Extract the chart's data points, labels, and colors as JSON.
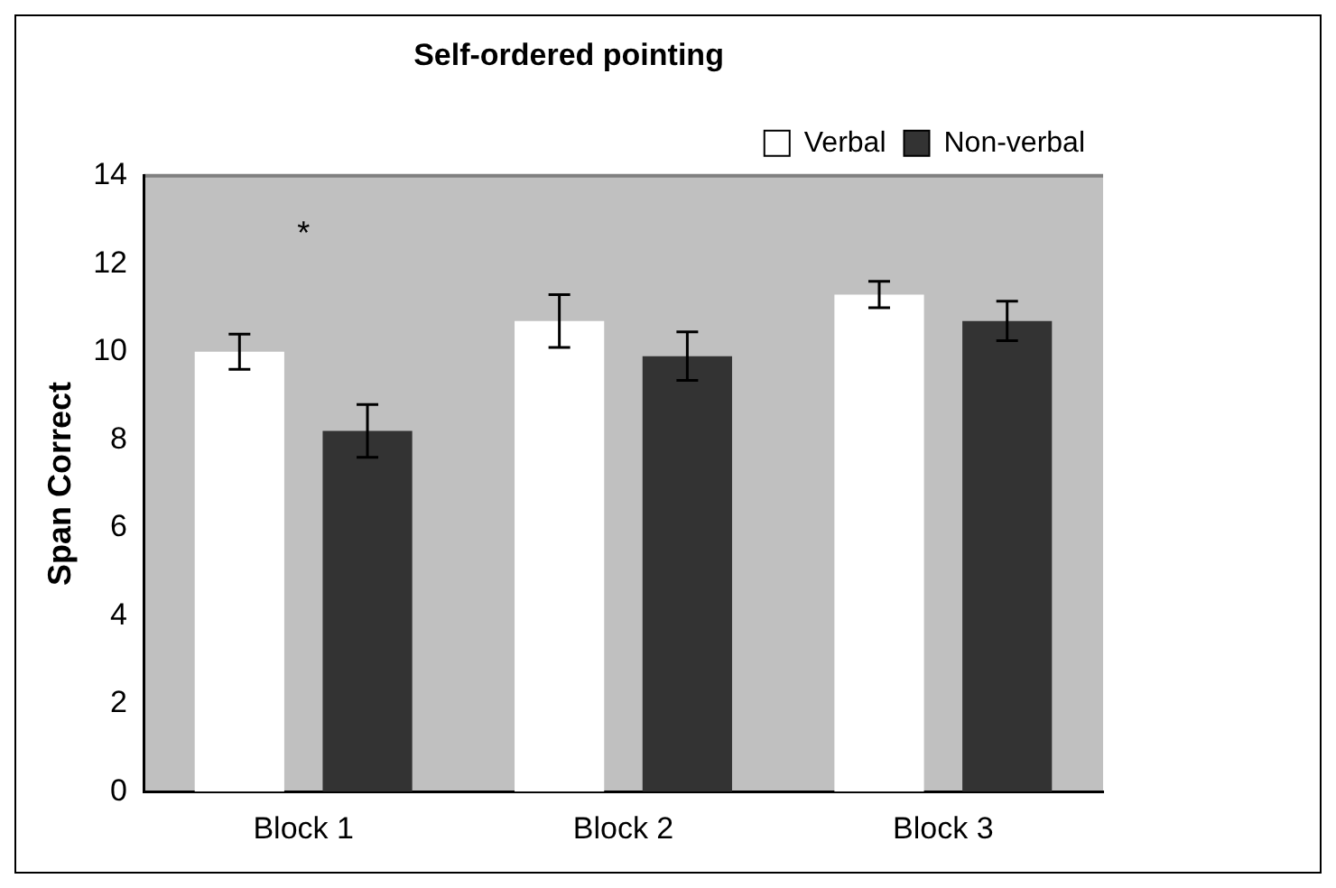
{
  "chart_data": {
    "type": "bar",
    "title": "Self-ordered pointing",
    "ylabel": "Span Correct",
    "categories": [
      "Block 1",
      "Block 2",
      "Block 3"
    ],
    "series": [
      {
        "name": "Verbal",
        "color": "#ffffff",
        "values": [
          10.0,
          10.7,
          11.3
        ],
        "errors": [
          0.4,
          0.6,
          0.3
        ]
      },
      {
        "name": "Non-verbal",
        "color": "#333333",
        "values": [
          8.2,
          9.9,
          10.7
        ],
        "errors": [
          0.6,
          0.55,
          0.45
        ]
      }
    ],
    "ylim": [
      0,
      14
    ],
    "yticks": [
      0,
      2,
      4,
      6,
      8,
      10,
      12,
      14
    ],
    "grid": false,
    "legend": "top right",
    "annotations": [
      "*"
    ]
  }
}
